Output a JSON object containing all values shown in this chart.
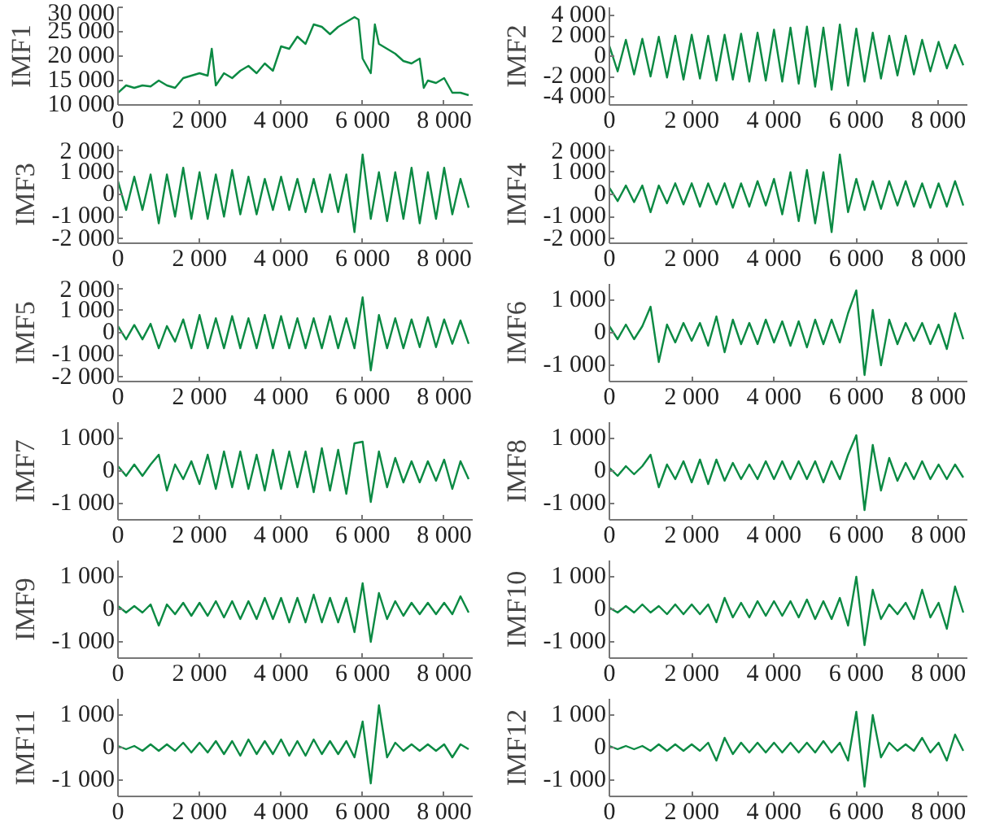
{
  "chart_data": [
    {
      "type": "line",
      "ylabel": "IMF1",
      "color": "#0b8a43",
      "xlim": [
        0,
        8700
      ],
      "ylim": [
        10000,
        30000
      ],
      "xticks": [
        0,
        {
          "value": 2000,
          "label": "2 000"
        },
        {
          "value": 4000,
          "label": "4 000"
        },
        {
          "value": 6000,
          "label": "6 000"
        },
        {
          "value": 8000,
          "label": "8 000"
        }
      ],
      "yticks": [
        {
          "value": 10000,
          "label": "10 000"
        },
        {
          "value": 15000,
          "label": "15 000"
        },
        {
          "value": 20000,
          "label": "20 000"
        },
        {
          "value": 25000,
          "label": "25 000"
        },
        {
          "value": 30000,
          "label": "30 000"
        }
      ],
      "x": [
        0,
        200,
        400,
        600,
        800,
        1000,
        1200,
        1400,
        1600,
        1800,
        2000,
        2200,
        2300,
        2400,
        2600,
        2800,
        3000,
        3200,
        3400,
        3600,
        3800,
        4000,
        4200,
        4400,
        4600,
        4800,
        5000,
        5200,
        5400,
        5600,
        5800,
        5900,
        6000,
        6200,
        6300,
        6400,
        6600,
        6800,
        7000,
        7200,
        7400,
        7500,
        7600,
        7800,
        8000,
        8200,
        8400,
        8600
      ],
      "values": [
        12500,
        14000,
        13500,
        14000,
        13800,
        15000,
        14000,
        13500,
        15500,
        16000,
        16500,
        16000,
        21500,
        14000,
        16500,
        15500,
        17000,
        18000,
        16500,
        18500,
        17000,
        22000,
        21500,
        24000,
        22500,
        26500,
        26000,
        24500,
        26000,
        27000,
        28000,
        27500,
        19500,
        16500,
        26500,
        22500,
        21500,
        20500,
        19000,
        18500,
        19500,
        13500,
        15000,
        14500,
        15500,
        12500,
        12500,
        12000
      ]
    },
    {
      "type": "line",
      "ylabel": "IMF2",
      "color": "#0b8a43",
      "xlim": [
        0,
        8700
      ],
      "ylim": [
        -4800,
        4800
      ],
      "xticks": [
        0,
        {
          "value": 2000,
          "label": "2 000"
        },
        {
          "value": 4000,
          "label": "4 000"
        },
        {
          "value": 6000,
          "label": "6 000"
        },
        {
          "value": 8000,
          "label": "8 000"
        }
      ],
      "yticks": [
        {
          "value": -4000,
          "label": "-4 000"
        },
        {
          "value": -2000,
          "label": "-2 000"
        },
        0,
        {
          "value": 2000,
          "label": "2 000"
        },
        {
          "value": 4000,
          "label": "4 000"
        }
      ],
      "x": [
        0,
        200,
        400,
        600,
        800,
        1000,
        1200,
        1400,
        1600,
        1800,
        2000,
        2200,
        2400,
        2600,
        2800,
        3000,
        3200,
        3400,
        3600,
        3800,
        4000,
        4200,
        4400,
        4600,
        4800,
        5000,
        5200,
        5400,
        5600,
        5800,
        6000,
        6200,
        6400,
        6600,
        6800,
        7000,
        7200,
        7400,
        7600,
        7800,
        8000,
        8200,
        8400,
        8600
      ],
      "values": [
        1000,
        -1500,
        1600,
        -1800,
        1700,
        -2000,
        1900,
        -2100,
        2000,
        -2300,
        2100,
        -2200,
        2000,
        -2400,
        2100,
        -2300,
        2200,
        -2500,
        2300,
        -2400,
        2600,
        -2500,
        2800,
        -2700,
        2900,
        -3000,
        2800,
        -3300,
        3100,
        -2900,
        2700,
        -2500,
        2300,
        -2200,
        2000,
        -1900,
        2000,
        -1800,
        1600,
        -1500,
        1400,
        -1200,
        1100,
        -900
      ]
    },
    {
      "type": "line",
      "ylabel": "IMF3",
      "color": "#0b8a43",
      "xlim": [
        0,
        8700
      ],
      "ylim": [
        -2200,
        2200
      ],
      "xticks": [
        0,
        {
          "value": 2000,
          "label": "2 000"
        },
        {
          "value": 4000,
          "label": "4 000"
        },
        {
          "value": 6000,
          "label": "6 000"
        },
        {
          "value": 8000,
          "label": "8 000"
        }
      ],
      "yticks": [
        {
          "value": -2000,
          "label": "-2 000"
        },
        {
          "value": -1000,
          "label": "-1 000"
        },
        0,
        {
          "value": 1000,
          "label": "1 000"
        },
        {
          "value": 2000,
          "label": "2 000"
        }
      ],
      "x": [
        0,
        200,
        400,
        600,
        800,
        1000,
        1200,
        1400,
        1600,
        1800,
        2000,
        2200,
        2400,
        2600,
        2800,
        3000,
        3200,
        3400,
        3600,
        3800,
        4000,
        4200,
        4400,
        4600,
        4800,
        5000,
        5200,
        5400,
        5600,
        5800,
        6000,
        6200,
        6400,
        6600,
        6800,
        7000,
        7200,
        7400,
        7600,
        7800,
        8000,
        8200,
        8400,
        8600
      ],
      "values": [
        600,
        -700,
        800,
        -700,
        900,
        -1300,
        900,
        -1000,
        1200,
        -1100,
        1000,
        -1100,
        900,
        -1000,
        1100,
        -900,
        800,
        -900,
        700,
        -700,
        800,
        -700,
        700,
        -800,
        700,
        -800,
        900,
        -800,
        900,
        -1700,
        1800,
        -1100,
        1000,
        -1200,
        1000,
        -1100,
        1200,
        -1300,
        1000,
        -1100,
        1200,
        -900,
        700,
        -600
      ]
    },
    {
      "type": "line",
      "ylabel": "IMF4",
      "color": "#0b8a43",
      "xlim": [
        0,
        8700
      ],
      "ylim": [
        -2200,
        2200
      ],
      "xticks": [
        0,
        {
          "value": 2000,
          "label": "2 000"
        },
        {
          "value": 4000,
          "label": "4 000"
        },
        {
          "value": 6000,
          "label": "6 000"
        },
        {
          "value": 8000,
          "label": "8 000"
        }
      ],
      "yticks": [
        {
          "value": -2000,
          "label": "-2 000"
        },
        {
          "value": -1000,
          "label": "-1 000"
        },
        0,
        {
          "value": 1000,
          "label": "1 000"
        },
        {
          "value": 2000,
          "label": "2 000"
        }
      ],
      "x": [
        0,
        200,
        400,
        600,
        800,
        1000,
        1200,
        1400,
        1600,
        1800,
        2000,
        2200,
        2400,
        2600,
        2800,
        3000,
        3200,
        3400,
        3600,
        3800,
        4000,
        4200,
        4400,
        4600,
        4800,
        5000,
        5200,
        5400,
        5600,
        5800,
        6000,
        6200,
        6400,
        6600,
        6800,
        7000,
        7200,
        7400,
        7600,
        7800,
        8000,
        8200,
        8400,
        8600
      ],
      "values": [
        300,
        -300,
        400,
        -350,
        400,
        -800,
        400,
        -400,
        500,
        -450,
        500,
        -550,
        500,
        -450,
        500,
        -600,
        500,
        -550,
        600,
        -500,
        700,
        -900,
        1000,
        -1200,
        1100,
        -1300,
        1000,
        -1700,
        1800,
        -800,
        700,
        -700,
        600,
        -650,
        600,
        -500,
        600,
        -550,
        500,
        -600,
        500,
        -550,
        600,
        -500
      ]
    },
    {
      "type": "line",
      "ylabel": "IMF5",
      "color": "#0b8a43",
      "xlim": [
        0,
        8700
      ],
      "ylim": [
        -2200,
        2200
      ],
      "xticks": [
        0,
        {
          "value": 2000,
          "label": "2 000"
        },
        {
          "value": 4000,
          "label": "4 000"
        },
        {
          "value": 6000,
          "label": "6 000"
        },
        {
          "value": 8000,
          "label": "8 000"
        }
      ],
      "yticks": [
        {
          "value": -2000,
          "label": "-2 000"
        },
        {
          "value": -1000,
          "label": "-1 000"
        },
        0,
        {
          "value": 1000,
          "label": "1 000"
        },
        {
          "value": 2000,
          "label": "2 000"
        }
      ],
      "x": [
        0,
        200,
        400,
        600,
        800,
        1000,
        1200,
        1400,
        1600,
        1800,
        2000,
        2200,
        2400,
        2600,
        2800,
        3000,
        3200,
        3400,
        3600,
        3800,
        4000,
        4200,
        4400,
        4600,
        4800,
        5000,
        5200,
        5400,
        5600,
        5800,
        6000,
        6200,
        6400,
        6600,
        6800,
        7000,
        7200,
        7400,
        7600,
        7800,
        8000,
        8200,
        8400,
        8600
      ],
      "values": [
        300,
        -300,
        350,
        -300,
        400,
        -700,
        300,
        -400,
        600,
        -700,
        800,
        -700,
        650,
        -700,
        750,
        -700,
        650,
        -700,
        800,
        -700,
        750,
        -700,
        650,
        -700,
        650,
        -700,
        750,
        -700,
        650,
        -700,
        1600,
        -1700,
        800,
        -700,
        650,
        -700,
        600,
        -650,
        700,
        -650,
        600,
        -500,
        550,
        -500
      ]
    },
    {
      "type": "line",
      "ylabel": "IMF6",
      "color": "#0b8a43",
      "xlim": [
        0,
        8700
      ],
      "ylim": [
        -1500,
        1500
      ],
      "xticks": [
        0,
        {
          "value": 2000,
          "label": "2 000"
        },
        {
          "value": 4000,
          "label": "4 000"
        },
        {
          "value": 6000,
          "label": "6 000"
        },
        {
          "value": 8000,
          "label": "8 000"
        }
      ],
      "yticks": [
        {
          "value": -1000,
          "label": "-1 000"
        },
        0,
        {
          "value": 1000,
          "label": "1 000"
        }
      ],
      "x": [
        0,
        200,
        400,
        600,
        800,
        1000,
        1200,
        1400,
        1600,
        1800,
        2000,
        2200,
        2400,
        2600,
        2800,
        3000,
        3200,
        3400,
        3600,
        3800,
        4000,
        4200,
        4400,
        4600,
        4800,
        5000,
        5200,
        5400,
        5600,
        5800,
        6000,
        6200,
        6400,
        6600,
        6800,
        7000,
        7200,
        7400,
        7600,
        7800,
        8000,
        8200,
        8400,
        8600
      ],
      "values": [
        200,
        -200,
        250,
        -200,
        200,
        800,
        -900,
        250,
        -300,
        300,
        -250,
        300,
        -400,
        500,
        -600,
        400,
        -350,
        300,
        -350,
        400,
        -300,
        350,
        -400,
        350,
        -450,
        400,
        -350,
        400,
        -300,
        600,
        1300,
        -1300,
        700,
        -1000,
        400,
        -350,
        300,
        -250,
        300,
        -350,
        250,
        -500,
        600,
        -200
      ]
    },
    {
      "type": "line",
      "ylabel": "IMF7",
      "color": "#0b8a43",
      "xlim": [
        0,
        8700
      ],
      "ylim": [
        -1500,
        1500
      ],
      "xticks": [
        0,
        {
          "value": 2000,
          "label": "2 000"
        },
        {
          "value": 4000,
          "label": "4 000"
        },
        {
          "value": 6000,
          "label": "6 000"
        },
        {
          "value": 8000,
          "label": "8 000"
        }
      ],
      "yticks": [
        {
          "value": -1000,
          "label": "-1 000"
        },
        0,
        {
          "value": 1000,
          "label": "1 000"
        }
      ],
      "x": [
        0,
        200,
        400,
        600,
        800,
        1000,
        1200,
        1400,
        1600,
        1800,
        2000,
        2200,
        2400,
        2600,
        2800,
        3000,
        3200,
        3400,
        3600,
        3800,
        4000,
        4200,
        4400,
        4600,
        4800,
        5000,
        5200,
        5400,
        5600,
        5800,
        6000,
        6200,
        6400,
        6600,
        6800,
        7000,
        7200,
        7400,
        7600,
        7800,
        8000,
        8200,
        8400,
        8600
      ],
      "values": [
        150,
        -150,
        200,
        -150,
        200,
        500,
        -600,
        200,
        -250,
        300,
        -400,
        500,
        -550,
        600,
        -500,
        600,
        -550,
        500,
        -600,
        650,
        -550,
        600,
        -500,
        600,
        -650,
        700,
        -600,
        650,
        -700,
        850,
        900,
        -950,
        600,
        -500,
        400,
        -350,
        300,
        -350,
        300,
        -300,
        350,
        -550,
        300,
        -250
      ]
    },
    {
      "type": "line",
      "ylabel": "IMF8",
      "color": "#0b8a43",
      "xlim": [
        0,
        8700
      ],
      "ylim": [
        -1500,
        1500
      ],
      "xticks": [
        0,
        {
          "value": 2000,
          "label": "2 000"
        },
        {
          "value": 4000,
          "label": "4 000"
        },
        {
          "value": 6000,
          "label": "6 000"
        },
        {
          "value": 8000,
          "label": "8 000"
        }
      ],
      "yticks": [
        {
          "value": -1000,
          "label": "-1 000"
        },
        0,
        {
          "value": 1000,
          "label": "1 000"
        }
      ],
      "x": [
        0,
        200,
        400,
        600,
        800,
        1000,
        1200,
        1400,
        1600,
        1800,
        2000,
        2200,
        2400,
        2600,
        2800,
        3000,
        3200,
        3400,
        3600,
        3800,
        4000,
        4200,
        4400,
        4600,
        4800,
        5000,
        5200,
        5400,
        5600,
        5800,
        6000,
        6200,
        6400,
        6600,
        6800,
        7000,
        7200,
        7400,
        7600,
        7800,
        8000,
        8200,
        8400,
        8600
      ],
      "values": [
        100,
        -150,
        150,
        -100,
        150,
        500,
        -500,
        200,
        -250,
        300,
        -350,
        350,
        -400,
        350,
        -300,
        250,
        -250,
        200,
        -250,
        300,
        -250,
        300,
        -250,
        300,
        -250,
        300,
        -350,
        300,
        -250,
        500,
        1100,
        -1200,
        800,
        -600,
        400,
        -300,
        250,
        -250,
        300,
        -250,
        200,
        -250,
        200,
        -200
      ]
    },
    {
      "type": "line",
      "ylabel": "IMF9",
      "color": "#0b8a43",
      "xlim": [
        0,
        8700
      ],
      "ylim": [
        -1500,
        1500
      ],
      "xticks": [
        0,
        {
          "value": 2000,
          "label": "2 000"
        },
        {
          "value": 4000,
          "label": "4 000"
        },
        {
          "value": 6000,
          "label": "6 000"
        },
        {
          "value": 8000,
          "label": "8 000"
        }
      ],
      "yticks": [
        {
          "value": -1000,
          "label": "-1 000"
        },
        0,
        {
          "value": 1000,
          "label": "1 000"
        }
      ],
      "x": [
        0,
        200,
        400,
        600,
        800,
        1000,
        1200,
        1400,
        1600,
        1800,
        2000,
        2200,
        2400,
        2600,
        2800,
        3000,
        3200,
        3400,
        3600,
        3800,
        4000,
        4200,
        4400,
        4600,
        4800,
        5000,
        5200,
        5400,
        5600,
        5800,
        6000,
        6200,
        6400,
        6600,
        6800,
        7000,
        7200,
        7400,
        7600,
        7800,
        8000,
        8200,
        8400,
        8600
      ],
      "values": [
        100,
        -100,
        100,
        -100,
        150,
        -500,
        150,
        -150,
        200,
        -200,
        200,
        -200,
        250,
        -250,
        250,
        -300,
        250,
        -300,
        350,
        -300,
        350,
        -400,
        350,
        -400,
        450,
        -400,
        350,
        -400,
        350,
        -700,
        800,
        -1000,
        500,
        -300,
        250,
        -200,
        200,
        -150,
        200,
        -150,
        200,
        -150,
        400,
        -100
      ]
    },
    {
      "type": "line",
      "ylabel": "IMF10",
      "color": "#0b8a43",
      "xlim": [
        0,
        8700
      ],
      "ylim": [
        -1500,
        1500
      ],
      "xticks": [
        0,
        {
          "value": 2000,
          "label": "2 000"
        },
        {
          "value": 4000,
          "label": "4 000"
        },
        {
          "value": 6000,
          "label": "6 000"
        },
        {
          "value": 8000,
          "label": "8 000"
        }
      ],
      "yticks": [
        {
          "value": -1000,
          "label": "-1 000"
        },
        0,
        {
          "value": 1000,
          "label": "1 000"
        }
      ],
      "x": [
        0,
        200,
        400,
        600,
        800,
        1000,
        1200,
        1400,
        1600,
        1800,
        2000,
        2200,
        2400,
        2600,
        2800,
        3000,
        3200,
        3400,
        3600,
        3800,
        4000,
        4200,
        4400,
        4600,
        4800,
        5000,
        5200,
        5400,
        5600,
        5800,
        6000,
        6200,
        6400,
        6600,
        6800,
        7000,
        7200,
        7400,
        7600,
        7800,
        8000,
        8200,
        8400,
        8600
      ],
      "values": [
        50,
        -100,
        100,
        -100,
        150,
        -100,
        100,
        -150,
        150,
        -150,
        150,
        -150,
        150,
        -400,
        350,
        -250,
        200,
        -250,
        250,
        -200,
        250,
        -200,
        250,
        -250,
        300,
        -300,
        250,
        -300,
        350,
        -500,
        1000,
        -1100,
        600,
        -300,
        150,
        -150,
        200,
        -300,
        600,
        -250,
        200,
        -600,
        700,
        -100
      ]
    },
    {
      "type": "line",
      "ylabel": "IMF11",
      "color": "#0b8a43",
      "xlim": [
        0,
        8700
      ],
      "ylim": [
        -1500,
        1500
      ],
      "xticks": [
        0,
        {
          "value": 2000,
          "label": "2 000"
        },
        {
          "value": 4000,
          "label": "4 000"
        },
        {
          "value": 6000,
          "label": "6 000"
        },
        {
          "value": 8000,
          "label": "8 000"
        }
      ],
      "yticks": [
        {
          "value": -1000,
          "label": "-1 000"
        },
        0,
        {
          "value": 1000,
          "label": "1 000"
        }
      ],
      "x": [
        0,
        200,
        400,
        600,
        800,
        1000,
        1200,
        1400,
        1600,
        1800,
        2000,
        2200,
        2400,
        2600,
        2800,
        3000,
        3200,
        3400,
        3600,
        3800,
        4000,
        4200,
        4400,
        4600,
        4800,
        5000,
        5200,
        5400,
        5600,
        5800,
        6000,
        6200,
        6400,
        6600,
        6800,
        7000,
        7200,
        7400,
        7600,
        7800,
        8000,
        8200,
        8400,
        8600
      ],
      "values": [
        50,
        -50,
        50,
        -100,
        100,
        -100,
        100,
        -100,
        150,
        -150,
        150,
        -150,
        200,
        -200,
        200,
        -250,
        250,
        -200,
        200,
        -200,
        250,
        -250,
        200,
        -250,
        250,
        -200,
        200,
        -200,
        200,
        -300,
        800,
        -1100,
        1300,
        -300,
        150,
        -100,
        100,
        -100,
        100,
        -100,
        100,
        -300,
        100,
        -50
      ]
    },
    {
      "type": "line",
      "ylabel": "IMF12",
      "color": "#0b8a43",
      "xlim": [
        0,
        8700
      ],
      "ylim": [
        -1500,
        1500
      ],
      "xticks": [
        0,
        {
          "value": 2000,
          "label": "2 000"
        },
        {
          "value": 4000,
          "label": "4 000"
        },
        {
          "value": 6000,
          "label": "6 000"
        },
        {
          "value": 8000,
          "label": "8 000"
        }
      ],
      "yticks": [
        {
          "value": -1000,
          "label": "-1 000"
        },
        0,
        {
          "value": 1000,
          "label": "1 000"
        }
      ],
      "x": [
        0,
        200,
        400,
        600,
        800,
        1000,
        1200,
        1400,
        1600,
        1800,
        2000,
        2200,
        2400,
        2600,
        2800,
        3000,
        3200,
        3400,
        3600,
        3800,
        4000,
        4200,
        4400,
        4600,
        4800,
        5000,
        5200,
        5400,
        5600,
        5800,
        6000,
        6200,
        6400,
        6600,
        6800,
        7000,
        7200,
        7400,
        7600,
        7800,
        8000,
        8200,
        8400,
        8600
      ],
      "values": [
        50,
        -50,
        50,
        -50,
        50,
        -100,
        100,
        -100,
        100,
        -100,
        100,
        -100,
        150,
        -400,
        300,
        -200,
        150,
        -150,
        150,
        -150,
        150,
        -150,
        150,
        -150,
        150,
        -150,
        200,
        -150,
        150,
        -400,
        1100,
        -1200,
        1000,
        -300,
        150,
        -100,
        100,
        -100,
        300,
        -150,
        150,
        -400,
        400,
        -100
      ]
    }
  ]
}
